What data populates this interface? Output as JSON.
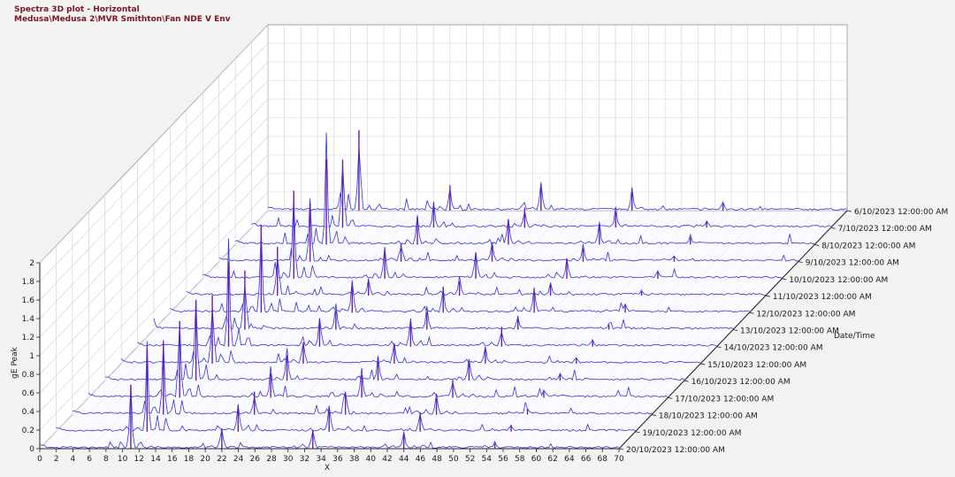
{
  "header": {
    "title": "Spectra 3D plot - Horizontal",
    "subtitle": "Medusa\\Medusa 2\\MVR Smithton\\Fan NDE V Env"
  },
  "chart_data": {
    "type": "waterfall-3d",
    "xlabel": "X",
    "ylabel": "gE Peak",
    "zlabel": "Date/Time",
    "xlim": [
      0,
      70
    ],
    "ylim": [
      0,
      2
    ],
    "xticks": [
      "0",
      "2",
      "4",
      "6",
      "8",
      "10",
      "12",
      "14",
      "16",
      "18",
      "20",
      "22",
      "24",
      "26",
      "28",
      "30",
      "32",
      "34",
      "36",
      "38",
      "40",
      "42",
      "44",
      "46",
      "48",
      "50",
      "52",
      "54",
      "56",
      "58",
      "60",
      "62",
      "64",
      "66",
      "68",
      "70"
    ],
    "yticks": [
      "0",
      "0.2",
      "0.4",
      "0.6",
      "0.8",
      "1",
      "1.2",
      "1.4",
      "1.6",
      "1.8",
      "2"
    ],
    "dates": [
      "6/10/2023 12:00:00 AM",
      "7/10/2023 12:00:00 AM",
      "8/10/2023 12:00:00 AM",
      "9/10/2023 12:00:00 AM",
      "10/10/2023 12:00:00 AM",
      "11/10/2023 12:00:00 AM",
      "12/10/2023 12:00:00 AM",
      "13/10/2023 12:00:00 AM",
      "14/10/2023 12:00:00 AM",
      "15/10/2023 12:00:00 AM",
      "16/10/2023 12:00:00 AM",
      "17/10/2023 12:00:00 AM",
      "18/10/2023 12:00:00 AM",
      "19/10/2023 12:00:00 AM",
      "20/10/2023 12:00:00 AM"
    ],
    "harmonic_peaks": [
      {
        "x": 11,
        "y": 0.95
      },
      {
        "x": 22,
        "y": 0.3
      },
      {
        "x": 33,
        "y": 0.28
      },
      {
        "x": 44,
        "y": 0.22
      },
      {
        "x": 55,
        "y": 0.08
      }
    ],
    "grid": true,
    "colors": {
      "trace": "#3030d8",
      "peak": "#6a1bb0",
      "grid": "#cfcfd6"
    }
  }
}
